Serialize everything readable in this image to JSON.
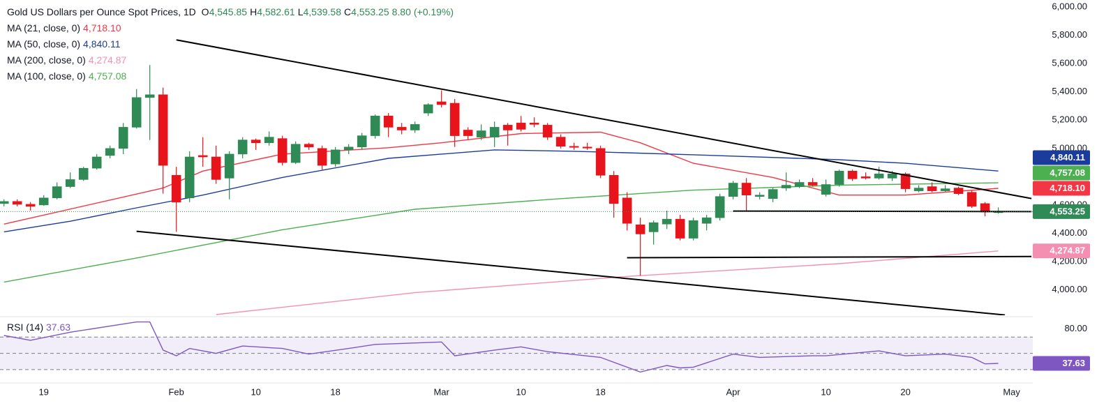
{
  "chart_data": {
    "type": "candlestick",
    "title": "Gold US Dollars per Ounce Spot Prices, 1D",
    "summary": [
      {
        "name": "O",
        "value": 4545.85,
        "label": "4,545.85"
      },
      {
        "name": "H",
        "value": 4582.61,
        "label": "4,582.61"
      },
      {
        "name": "L",
        "value": 4539.58,
        "label": "4,539.58"
      },
      {
        "name": "C",
        "value": 4553.25,
        "label": "4,553.25"
      }
    ],
    "change": {
      "value": 8.8,
      "label": "8.80"
    },
    "change_pct": {
      "value": 0.19,
      "label": "(+0.19%)"
    },
    "up_color": "#2f8a55",
    "down_color": "#e8141c",
    "ohlc": {
      "open": [
        4610,
        4625,
        4605,
        4600,
        4650,
        4730,
        4780,
        4860,
        4950,
        5000,
        5150,
        5360,
        5380,
        4810,
        4650,
        4950,
        4940,
        4790,
        4960,
        5060,
        5040,
        5070,
        4900,
        5030,
        5000,
        4890,
        4990,
        5010,
        5090,
        5230,
        5150,
        5130,
        5250,
        5330,
        5320,
        5130,
        5080,
        5080,
        5165,
        5180,
        5180,
        5165,
        5080,
        5015,
        5010,
        5000,
        4810,
        4650,
        4460,
        4410,
        4465,
        4500,
        4365,
        4470,
        4510,
        4660,
        4755,
        4660,
        4645,
        4720,
        4730,
        4760,
        4675,
        4745,
        4840,
        4800,
        4790,
        4790,
        4820,
        4700,
        4730,
        4700,
        4720,
        4690,
        4610,
        4545.85
      ],
      "high": [
        4640,
        4640,
        4620,
        4670,
        4760,
        4830,
        4870,
        4960,
        5020,
        5180,
        5420,
        5590,
        5430,
        4870,
        4980,
        5080,
        5020,
        4980,
        5080,
        5070,
        5120,
        5090,
        5050,
        5040,
        5020,
        5010,
        5030,
        5110,
        5240,
        5250,
        5180,
        5190,
        5320,
        5410,
        5350,
        5150,
        5170,
        5190,
        5180,
        5230,
        5220,
        5180,
        5100,
        5040,
        5040,
        5020,
        4840,
        4690,
        4510,
        4490,
        4560,
        4530,
        4510,
        4530,
        4680,
        4770,
        4790,
        4690,
        4720,
        4830,
        4780,
        4790,
        4780,
        4850,
        4850,
        4830,
        4870,
        4840,
        4830,
        4740,
        4760,
        4740,
        4730,
        4700,
        4620,
        4582.61
      ],
      "low": [
        4590,
        4590,
        4560,
        4595,
        4640,
        4720,
        4770,
        4850,
        4930,
        4960,
        5140,
        5060,
        4680,
        4410,
        4620,
        4870,
        4750,
        4640,
        4930,
        4990,
        5020,
        4880,
        4890,
        4990,
        4850,
        4870,
        4960,
        4990,
        5070,
        5080,
        5100,
        5110,
        5230,
        5290,
        5010,
        5060,
        5060,
        5010,
        5020,
        5120,
        5150,
        5060,
        5000,
        4990,
        4990,
        4790,
        4510,
        4420,
        4100,
        4320,
        4430,
        4350,
        4350,
        4420,
        4490,
        4640,
        4560,
        4640,
        4620,
        4700,
        4720,
        4730,
        4660,
        4730,
        4770,
        4780,
        4780,
        4770,
        4690,
        4690,
        4690,
        4690,
        4670,
        4580,
        4520,
        4539.58
      ],
      "close": [
        4625,
        4605,
        4590,
        4650,
        4730,
        4780,
        4860,
        4940,
        5000,
        5150,
        5360,
        5380,
        4880,
        4620,
        4940,
        4940,
        4780,
        4960,
        5060,
        5040,
        5080,
        4900,
        5030,
        5010,
        4880,
        4990,
        5010,
        5090,
        5230,
        5150,
        5130,
        5170,
        5310,
        5310,
        5090,
        5090,
        5125,
        5150,
        5130,
        5135,
        5170,
        5080,
        5015,
        5010,
        5005,
        4810,
        4610,
        4470,
        4395,
        4475,
        4500,
        4365,
        4490,
        4510,
        4660,
        4755,
        4670,
        4670,
        4710,
        4740,
        4760,
        4740,
        4745,
        4840,
        4785,
        4790,
        4820,
        4820,
        4715,
        4720,
        4700,
        4715,
        4680,
        4590,
        4550,
        4553.25
      ]
    },
    "xlim": [
      -0.3,
      77.6
    ],
    "xticks": [
      {
        "value": 3,
        "label": "19"
      },
      {
        "value": 13,
        "label": "Feb"
      },
      {
        "value": 19,
        "label": "10"
      },
      {
        "value": 25,
        "label": "18"
      },
      {
        "value": 33,
        "label": "Mar"
      },
      {
        "value": 39,
        "label": "10"
      },
      {
        "value": 45,
        "label": "18"
      },
      {
        "value": 55,
        "label": "Apr"
      },
      {
        "value": 62,
        "label": "10"
      },
      {
        "value": 68,
        "label": "20"
      },
      {
        "value": 76,
        "label": "May"
      }
    ],
    "ylim": [
      3820,
      6050
    ],
    "yticks": [
      {
        "value": 4000,
        "label": "4,000.00"
      },
      {
        "value": 4200,
        "label": "4,200.00"
      },
      {
        "value": 4400,
        "label": "4,400.00"
      },
      {
        "value": 4600,
        "label": "4,600.00"
      },
      {
        "value": 4800,
        "label": "4,800.00"
      },
      {
        "value": 5000,
        "label": "5,000.00"
      },
      {
        "value": 5200,
        "label": "5,200.00"
      },
      {
        "value": 5400,
        "label": "5,400.00"
      },
      {
        "value": 5600,
        "label": "5,600.00"
      },
      {
        "value": 5800,
        "label": "5,800.00"
      },
      {
        "value": 6000,
        "label": "6,000.00"
      }
    ],
    "series": [
      {
        "name": "MA (21, close, 0)",
        "color": "#f23645",
        "x": [
          0,
          12,
          15,
          21,
          29,
          33,
          39,
          45,
          48,
          52,
          58,
          63,
          68,
          75
        ],
        "values": [
          4465,
          4720,
          4840,
          4960,
          5005,
          5040,
          5105,
          5115,
          5040,
          4895,
          4795,
          4670,
          4670,
          4718.1
        ],
        "last": {
          "value": 4718.1,
          "label": "4,718.10"
        }
      },
      {
        "name": "MA (50, close, 0)",
        "color": "#1c3c9c",
        "x": [
          0,
          5,
          10,
          15,
          21,
          29,
          37,
          43,
          45,
          52,
          63,
          68,
          75
        ],
        "values": [
          4410,
          4485,
          4580,
          4670,
          4795,
          4930,
          4990,
          4980,
          4975,
          4955,
          4920,
          4895,
          4840.11
        ],
        "last": {
          "value": 4840.11,
          "label": "4,840.11"
        }
      },
      {
        "name": "MA (200, close, 0)",
        "color": "#f48fb1",
        "x": [
          16,
          31,
          47,
          63,
          75
        ],
        "values": [
          3825,
          3980,
          4095,
          4185,
          4274.87
        ],
        "last": {
          "value": 4274.87,
          "label": "4,274.87"
        }
      },
      {
        "name": "MA (100, close, 0)",
        "color": "#4caf50",
        "x": [
          0,
          10,
          21,
          31,
          42,
          52,
          63,
          75
        ],
        "values": [
          4055,
          4225,
          4425,
          4570,
          4645,
          4705,
          4740,
          4757.08
        ],
        "last": {
          "value": 4757.08,
          "label": "4,757.08"
        }
      }
    ],
    "trendlines": [
      {
        "color": "#000000",
        "x": [
          13,
          77.5
        ],
        "values": [
          5768,
          4646
        ]
      },
      {
        "color": "#000000",
        "x": [
          10,
          75.5
        ],
        "values": [
          4414,
          3822
        ]
      },
      {
        "color": "#000000",
        "x": [
          55,
          77.5
        ],
        "values": [
          4557,
          4553
        ]
      },
      {
        "color": "#000000",
        "x": [
          47,
          77.5
        ],
        "values": [
          4227,
          4236
        ]
      }
    ],
    "rsi": {
      "name": "RSI (14)",
      "color": "#7e57c2",
      "x": [
        0,
        2,
        5,
        10,
        11,
        12,
        13,
        14,
        16,
        18,
        21,
        23,
        26,
        28,
        33,
        34,
        37,
        39,
        41,
        45,
        47,
        48,
        50,
        51,
        52,
        55,
        57,
        61,
        62,
        66,
        68,
        71,
        73,
        74,
        75
      ],
      "values": [
        72,
        66,
        76,
        88.6,
        88.6,
        54,
        47,
        56,
        50,
        59,
        56,
        49,
        56,
        61,
        64,
        47,
        54,
        58,
        52,
        45,
        33,
        27,
        35,
        32,
        33,
        49,
        45,
        47,
        47,
        53,
        47,
        49,
        45,
        37,
        37.63
      ],
      "last": {
        "value": 37.63,
        "label": "37.63"
      },
      "ylim": [
        17,
        90
      ],
      "yticks": [
        {
          "value": 80,
          "label": "80.00"
        }
      ],
      "bands": [
        70,
        50,
        30
      ]
    }
  }
}
